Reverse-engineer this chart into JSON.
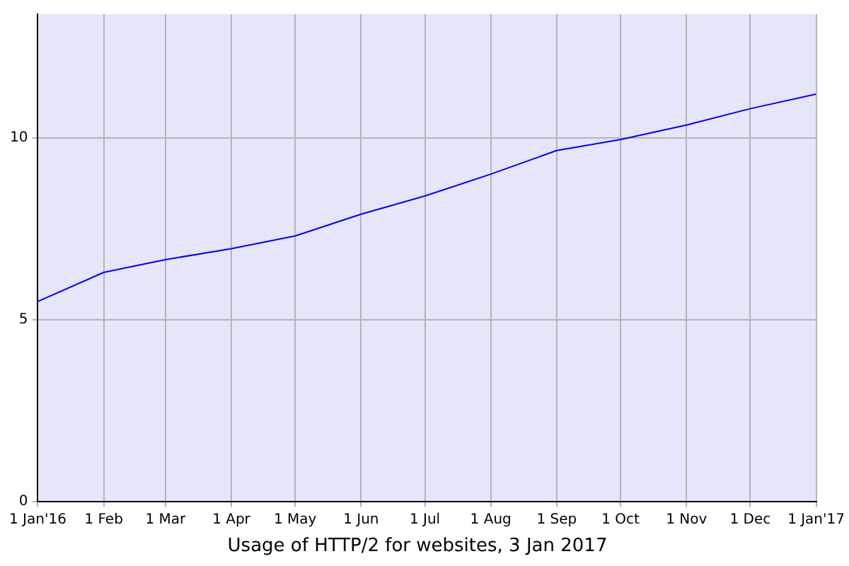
{
  "chart_data": {
    "type": "line",
    "title": "Usage of HTTP/2 for websites, 3 Jan 2017",
    "x": [
      "2016-01-01",
      "2016-02-01",
      "2016-03-01",
      "2016-04-01",
      "2016-05-01",
      "2016-06-01",
      "2016-07-01",
      "2016-08-01",
      "2016-09-01",
      "2016-10-01",
      "2016-11-01",
      "2016-12-01",
      "2017-01-01"
    ],
    "series": [
      {
        "color": "#0000ff",
        "values": [
          5.5,
          6.3,
          6.65,
          6.95,
          7.3,
          7.9,
          8.4,
          9.0,
          9.65,
          9.95,
          10.35,
          10.8,
          11.2
        ]
      }
    ],
    "xlim": [
      "2016-01-01",
      "2017-01-01"
    ],
    "xticks": [
      {
        "value": "2016-01-01",
        "label": "1 Jan'16"
      },
      {
        "value": "2016-02-01",
        "label": "1 Feb"
      },
      {
        "value": "2016-03-01",
        "label": "1 Mar"
      },
      {
        "value": "2016-04-01",
        "label": "1 Apr"
      },
      {
        "value": "2016-05-01",
        "label": "1 May"
      },
      {
        "value": "2016-06-01",
        "label": "1 Jun"
      },
      {
        "value": "2016-07-01",
        "label": "1 Jul"
      },
      {
        "value": "2016-08-01",
        "label": "1 Aug"
      },
      {
        "value": "2016-09-01",
        "label": "1 Sep"
      },
      {
        "value": "2016-10-01",
        "label": "1 Oct"
      },
      {
        "value": "2016-11-01",
        "label": "1 Nov"
      },
      {
        "value": "2016-12-01",
        "label": "1 Dec"
      },
      {
        "value": "2017-01-01",
        "label": "1 Jan'17"
      }
    ],
    "ylim": [
      0,
      13.4
    ],
    "yticks": [
      0,
      5,
      10
    ],
    "grid": true,
    "legend": false,
    "marker": "none"
  }
}
